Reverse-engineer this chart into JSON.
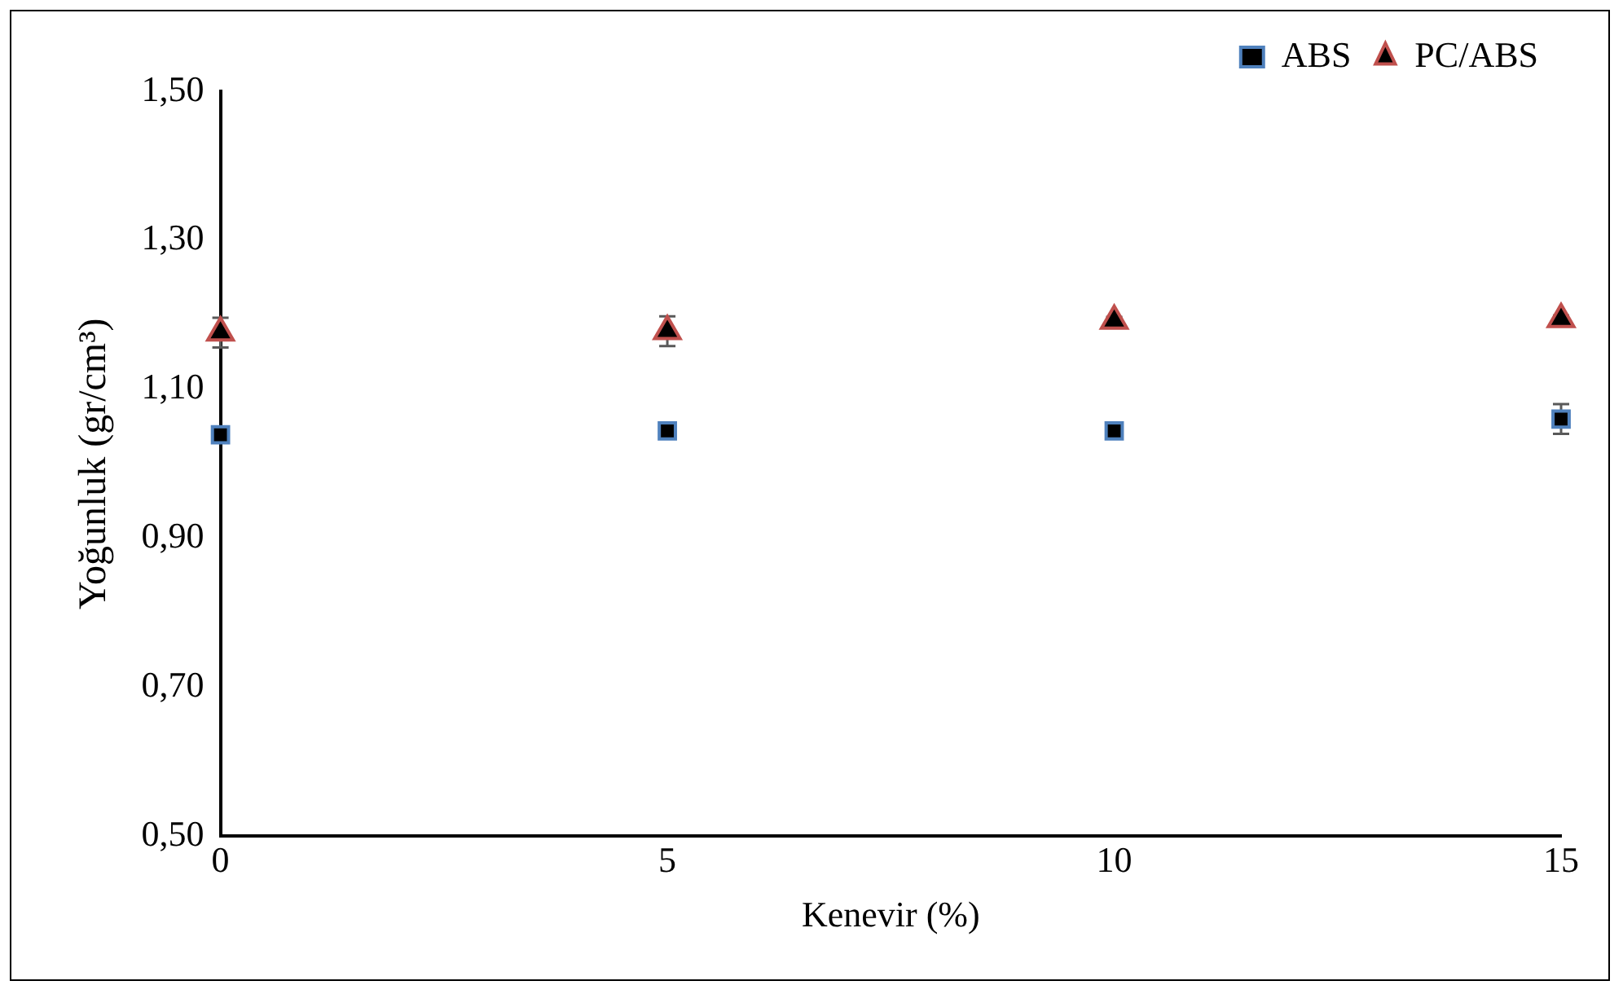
{
  "chart_data": {
    "type": "scatter",
    "xlabel": "Kenevir (%)",
    "ylabel": "Yoğunluk (gr/cm³)",
    "x": [
      0,
      5,
      10,
      15
    ],
    "series": [
      {
        "name": "ABS",
        "color": "#4f81bd",
        "marker": "square",
        "values": [
          1.039,
          1.044,
          1.044,
          1.06
        ],
        "errors": [
          0.005,
          0.005,
          0.005,
          0.02
        ]
      },
      {
        "name": "PC/ABS",
        "color": "#c0504d",
        "marker": "triangle",
        "values": [
          1.176,
          1.178,
          1.192,
          1.194
        ],
        "errors": [
          0.02,
          0.02,
          0.005,
          0.005
        ]
      }
    ],
    "xlim": [
      0,
      15
    ],
    "xticks": [
      0,
      5,
      10,
      15
    ],
    "ylim": [
      0.5,
      1.5
    ],
    "yticks": [
      {
        "value": 0.5,
        "label": "0,50"
      },
      {
        "value": 0.7,
        "label": "0,70"
      },
      {
        "value": 0.9,
        "label": "0,90"
      },
      {
        "value": 1.1,
        "label": "1,10"
      },
      {
        "value": 1.3,
        "label": "1,30"
      },
      {
        "value": 1.5,
        "label": "1,50"
      }
    ],
    "grid": false,
    "legend": "top right"
  }
}
